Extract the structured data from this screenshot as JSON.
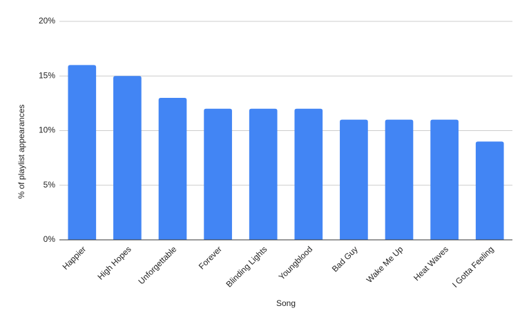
{
  "chart_data": {
    "type": "bar",
    "x_label": "Song",
    "y_label": "% of playlist appearances",
    "categories": [
      "Happier",
      "High Hopes",
      "Unforgettable",
      "Forever",
      "Blinding Lights",
      "Youngblood",
      "Bad Guy",
      "Wake Me Up",
      "Heat Waves",
      "I Gotta Feeling"
    ],
    "values": [
      16,
      15,
      13,
      12,
      12,
      12,
      11,
      11,
      11,
      9
    ],
    "color": "#4285f4",
    "ylim": [
      0,
      20
    ],
    "yticks": [
      {
        "value": 0,
        "label": "0%"
      },
      {
        "value": 5,
        "label": "5%"
      },
      {
        "value": 10,
        "label": "10%"
      },
      {
        "value": 15,
        "label": "15%"
      },
      {
        "value": 20,
        "label": "20%"
      }
    ],
    "grid": true
  }
}
